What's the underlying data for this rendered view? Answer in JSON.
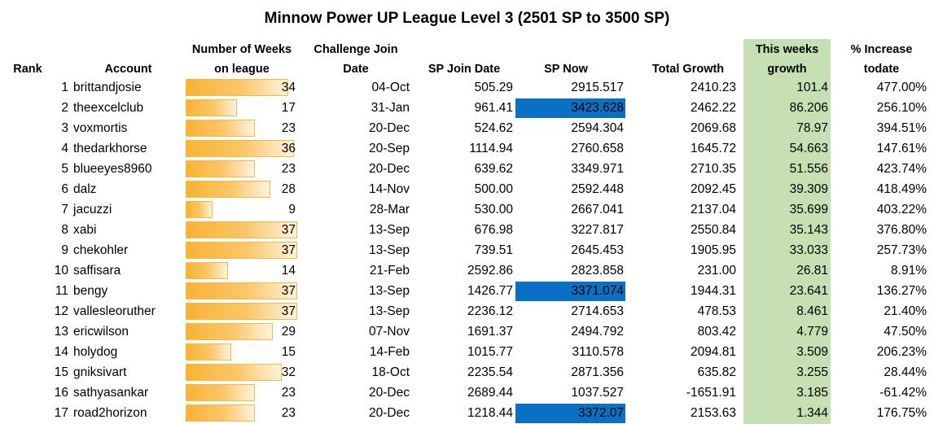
{
  "title": "Minnow Power UP League Level 3 (2501 SP to 3500 SP)",
  "headers": {
    "rank": "Rank",
    "account": "Account",
    "weeks_line1": "Number of Weeks",
    "weeks_line2": "on league",
    "join_line1": "Challenge Join",
    "join_line2": "Date",
    "sp_join": "SP Join Date",
    "sp_now": "SP Now",
    "total_growth": "Total Growth",
    "week_growth_line1": "This weeks",
    "week_growth_line2": "growth",
    "increase_line1": "% Increase",
    "increase_line2": "todate"
  },
  "colors": {
    "highlight_green": "#c6e0b4",
    "highlight_blue": "#0a70c4",
    "databar": "#f9b233"
  },
  "weeks_max": 37,
  "rows": [
    {
      "rank": "1",
      "account": "brittandjosie",
      "weeks": "34",
      "join": "04-Oct",
      "sp_join": "505.29",
      "sp_now": "2915.517",
      "total": "2410.23",
      "week": "101.4",
      "pct": "477.00%",
      "sp_now_highlight": false
    },
    {
      "rank": "2",
      "account": "theexcelclub",
      "weeks": "17",
      "join": "31-Jan",
      "sp_join": "961.41",
      "sp_now": "3423.628",
      "total": "2462.22",
      "week": "86.206",
      "pct": "256.10%",
      "sp_now_highlight": true
    },
    {
      "rank": "3",
      "account": "voxmortis",
      "weeks": "23",
      "join": "20-Dec",
      "sp_join": "524.62",
      "sp_now": "2594.304",
      "total": "2069.68",
      "week": "78.97",
      "pct": "394.51%",
      "sp_now_highlight": false
    },
    {
      "rank": "4",
      "account": "thedarkhorse",
      "weeks": "36",
      "join": "20-Sep",
      "sp_join": "1114.94",
      "sp_now": "2760.658",
      "total": "1645.72",
      "week": "54.663",
      "pct": "147.61%",
      "sp_now_highlight": false
    },
    {
      "rank": "5",
      "account": "blueeyes8960",
      "weeks": "23",
      "join": "20-Dec",
      "sp_join": "639.62",
      "sp_now": "3349.971",
      "total": "2710.35",
      "week": "51.556",
      "pct": "423.74%",
      "sp_now_highlight": false
    },
    {
      "rank": "6",
      "account": "dalz",
      "weeks": "28",
      "join": "14-Nov",
      "sp_join": "500.00",
      "sp_now": "2592.448",
      "total": "2092.45",
      "week": "39.309",
      "pct": "418.49%",
      "sp_now_highlight": false
    },
    {
      "rank": "7",
      "account": "jacuzzi",
      "weeks": "9",
      "join": "28-Mar",
      "sp_join": "530.00",
      "sp_now": "2667.041",
      "total": "2137.04",
      "week": "35.699",
      "pct": "403.22%",
      "sp_now_highlight": false
    },
    {
      "rank": "8",
      "account": "xabi",
      "weeks": "37",
      "join": "13-Sep",
      "sp_join": "676.98",
      "sp_now": "3227.817",
      "total": "2550.84",
      "week": "35.143",
      "pct": "376.80%",
      "sp_now_highlight": false
    },
    {
      "rank": "9",
      "account": "chekohler",
      "weeks": "37",
      "join": "13-Sep",
      "sp_join": "739.51",
      "sp_now": "2645.453",
      "total": "1905.95",
      "week": "33.033",
      "pct": "257.73%",
      "sp_now_highlight": false
    },
    {
      "rank": "10",
      "account": "saffisara",
      "weeks": "14",
      "join": "21-Feb",
      "sp_join": "2592.86",
      "sp_now": "2823.858",
      "total": "231.00",
      "week": "26.81",
      "pct": "8.91%",
      "sp_now_highlight": false
    },
    {
      "rank": "11",
      "account": "bengy",
      "weeks": "37",
      "join": "13-Sep",
      "sp_join": "1426.77",
      "sp_now": "3371.074",
      "total": "1944.31",
      "week": "23.641",
      "pct": "136.27%",
      "sp_now_highlight": true
    },
    {
      "rank": "12",
      "account": "vallesleoruther",
      "weeks": "37",
      "join": "13-Sep",
      "sp_join": "2236.12",
      "sp_now": "2714.653",
      "total": "478.53",
      "week": "8.461",
      "pct": "21.40%",
      "sp_now_highlight": false
    },
    {
      "rank": "13",
      "account": "ericwilson",
      "weeks": "29",
      "join": "07-Nov",
      "sp_join": "1691.37",
      "sp_now": "2494.792",
      "total": "803.42",
      "week": "4.779",
      "pct": "47.50%",
      "sp_now_highlight": false
    },
    {
      "rank": "14",
      "account": "holydog",
      "weeks": "15",
      "join": "14-Feb",
      "sp_join": "1015.77",
      "sp_now": "3110.578",
      "total": "2094.81",
      "week": "3.509",
      "pct": "206.23%",
      "sp_now_highlight": false
    },
    {
      "rank": "15",
      "account": "gniksivart",
      "weeks": "32",
      "join": "18-Oct",
      "sp_join": "2235.54",
      "sp_now": "2871.356",
      "total": "635.82",
      "week": "3.255",
      "pct": "28.44%",
      "sp_now_highlight": false
    },
    {
      "rank": "16",
      "account": "sathyasankar",
      "weeks": "23",
      "join": "20-Dec",
      "sp_join": "2689.44",
      "sp_now": "1037.527",
      "total": "-1651.91",
      "week": "3.185",
      "pct": "-61.42%",
      "sp_now_highlight": false
    },
    {
      "rank": "17",
      "account": "road2horizon",
      "weeks": "23",
      "join": "20-Dec",
      "sp_join": "1218.44",
      "sp_now": "3372.07",
      "total": "2153.63",
      "week": "1.344",
      "pct": "176.75%",
      "sp_now_highlight": true
    }
  ]
}
